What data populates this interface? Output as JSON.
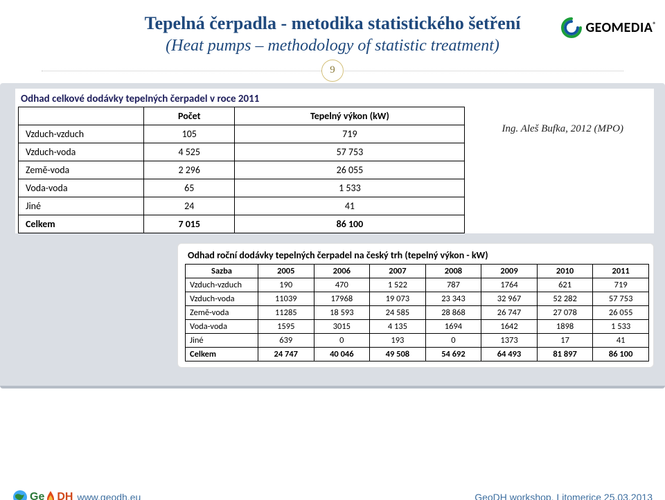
{
  "logo": {
    "text": "GEOMEDIA",
    "registered": "®"
  },
  "title_line1": "Tepelná čerpadla - metodika statistického šetření",
  "title_line2": "(Heat pumps – methodology of statistic treatment)",
  "page_number": "9",
  "source": "Ing. Aleš Bufka, 2012 (MPO)",
  "colors": {
    "title": "#1f497d",
    "band_bg": "#dadee4",
    "band_border": "#b6bdc7",
    "badge_border": "#d4c07a",
    "badge_text": "#8a7a3a",
    "footer_text": "#3e6fa0",
    "tbl1_title": "#1f1f5c"
  },
  "table1": {
    "title": "Odhad celkové dodávky tepelných čerpadel v roce 2011",
    "headers": [
      "",
      "Počet",
      "Tepelný výkon (kW)"
    ],
    "rows": [
      {
        "label": "Vzduch-vzduch",
        "count": "105",
        "power": "719"
      },
      {
        "label": "Vzduch-voda",
        "count": "4 525",
        "power": "57 753"
      },
      {
        "label": "Země-voda",
        "count": "2 296",
        "power": "26 055"
      },
      {
        "label": "Voda-voda",
        "count": "65",
        "power": "1 533"
      },
      {
        "label": "Jiné",
        "count": "24",
        "power": "41"
      },
      {
        "label": "Celkem",
        "count": "7 015",
        "power": "86 100",
        "total": true
      }
    ]
  },
  "table2": {
    "title": "Odhad roční dodávky tepelných čerpadel na český trh (tepelný výkon - kW)",
    "col_label": "Sazba",
    "years": [
      "2005",
      "2006",
      "2007",
      "2008",
      "2009",
      "2010",
      "2011"
    ],
    "rows": [
      {
        "label": "Vzduch-vzduch",
        "vals": [
          "190",
          "470",
          "1 522",
          "787",
          "1764",
          "621",
          "719"
        ]
      },
      {
        "label": "Vzduch-voda",
        "vals": [
          "11039",
          "17968",
          "19 073",
          "23 343",
          "32 967",
          "52 282",
          "57 753"
        ]
      },
      {
        "label": "Země-voda",
        "vals": [
          "11285",
          "18 593",
          "24 585",
          "28 868",
          "26 747",
          "27 078",
          "26 055"
        ]
      },
      {
        "label": "Voda-voda",
        "vals": [
          "1595",
          "3015",
          "4 135",
          "1694",
          "1642",
          "1898",
          "1 533"
        ]
      },
      {
        "label": "Jiné",
        "vals": [
          "639",
          "0",
          "193",
          "0",
          "1373",
          "17",
          "41"
        ]
      },
      {
        "label": "Celkem",
        "vals": [
          "24 747",
          "40 046",
          "49 508",
          "54 692",
          "64 493",
          "81 897",
          "86 100"
        ],
        "total": true
      }
    ]
  },
  "footer": {
    "logo_geo": "Ge",
    "logo_dh": "DH",
    "url": "www.geodh.eu",
    "right": "GeoDH workshop, Litomerice  25.03.2013"
  }
}
